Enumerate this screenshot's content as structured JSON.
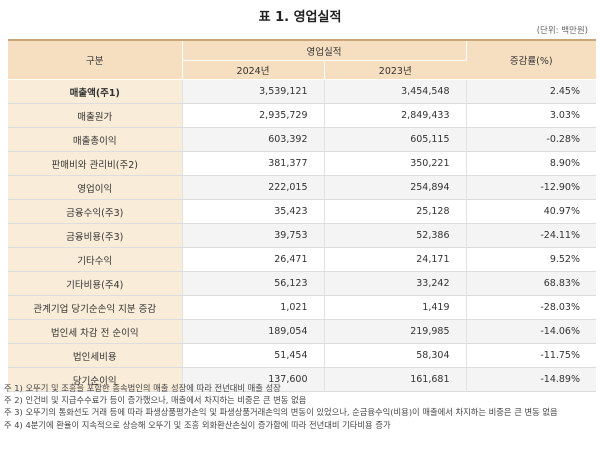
{
  "title": "표 1. 영업실적",
  "unit": "(단위: 백만원)",
  "headers": {
    "category": "구분",
    "group": "영업실적",
    "year1": "2024년",
    "year2": "2023년",
    "change": "증감률(%)"
  },
  "rows": [
    {
      "name": "매출액(주1)",
      "y2024": "3,539,121",
      "y2023": "3,454,548",
      "change": "2.45%"
    },
    {
      "name": "매출원가",
      "y2024": "2,935,729",
      "y2023": "2,849,433",
      "change": "3.03%"
    },
    {
      "name": "매출총이익",
      "y2024": "603,392",
      "y2023": "605,115",
      "change": "-0.28%"
    },
    {
      "name": "판매비와 관리비(주2)",
      "y2024": "381,377",
      "y2023": "350,221",
      "change": "8.90%"
    },
    {
      "name": "영업이익",
      "y2024": "222,015",
      "y2023": "254,894",
      "change": "-12.90%"
    },
    {
      "name": "금융수익(주3)",
      "y2024": "35,423",
      "y2023": "25,128",
      "change": "40.97%"
    },
    {
      "name": "금융비용(주3)",
      "y2024": "39,753",
      "y2023": "52,386",
      "change": "-24.11%"
    },
    {
      "name": "기타수익",
      "y2024": "26,471",
      "y2023": "24,171",
      "change": "9.52%"
    },
    {
      "name": "기타비용(주4)",
      "y2024": "56,123",
      "y2023": "33,242",
      "change": "68.83%"
    },
    {
      "name": "관계기업 당기순손익 지분 증감",
      "y2024": "1,021",
      "y2023": "1,419",
      "change": "-28.03%"
    },
    {
      "name": "법인세 차감 전 순이익",
      "y2024": "189,054",
      "y2023": "219,985",
      "change": "-14.06%"
    },
    {
      "name": "법인세비용",
      "y2024": "51,454",
      "y2023": "58,304",
      "change": "-11.75%"
    },
    {
      "name": "당기순이익",
      "y2024": "137,600",
      "y2023": "161,681",
      "change": "-14.89%"
    }
  ],
  "notes": [
    {
      "marker": "주 1) ",
      "text": "오뚜기 및 조흥을 포함한 종속법인의 매출 성장에 따라 전년대비 매출 성장"
    },
    {
      "marker": "주 2) ",
      "text": "인건비 및 지급수수료가 등이 증가했으나, 매출에서 차지하는 비중은 큰 변동 없음"
    },
    {
      "marker": "주 3) ",
      "text": "오뚜기의 통화선도 거래 등에 따라 파생상품평가손익 및 파생상품거래손익의 변동이 있었으나, 순금융수익(비용)이 매출에서 차지하는 비중은 큰 변동 없음"
    },
    {
      "marker": "주 4) ",
      "text": "4분기에 환율이 지속적으로 상승해 오뚜기 및 조흥 외화환산손실이 증가함에 따라 전년대비 기타비용 증가"
    }
  ]
}
